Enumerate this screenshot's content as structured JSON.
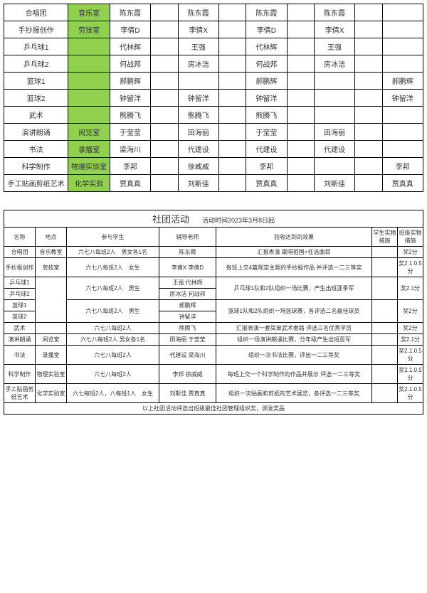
{
  "topTable": {
    "rows": [
      {
        "name": "合唱团",
        "room": "音乐室",
        "roomGreen": true,
        "c3": "陈东霞",
        "c4": "",
        "c5": "陈东霞",
        "c6": "",
        "c7": "陈东霞",
        "c8": "",
        "c9": "陈东霞",
        "c10": "",
        "c11": ""
      },
      {
        "name": "手抄报创作",
        "room": "劳技室",
        "roomGreen": true,
        "c3": "李倩D",
        "c4": "",
        "c5": "李倩X",
        "c6": "",
        "c7": "李倩D",
        "c8": "",
        "c9": "李倩X",
        "c10": "",
        "c11": ""
      },
      {
        "name": "乒乓球1",
        "room": "",
        "roomGreen": true,
        "c3": "代林辉",
        "c4": "",
        "c5": "王强",
        "c6": "",
        "c7": "代林辉",
        "c8": "",
        "c9": "王强",
        "c10": "",
        "c11": ""
      },
      {
        "name": "乒乓球2",
        "room": "",
        "roomGreen": true,
        "c3": "何战邦",
        "c4": "",
        "c5": "房冰洁",
        "c6": "",
        "c7": "何战邦",
        "c8": "",
        "c9": "房冰洁",
        "c10": "",
        "c11": ""
      },
      {
        "name": "篮球1",
        "room": "",
        "roomGreen": true,
        "c3": "郝鹏辉",
        "c4": "",
        "c5": "",
        "c6": "",
        "c7": "郝鹏辉",
        "c8": "",
        "c9": "",
        "c10": "",
        "c11": "郝鹏辉"
      },
      {
        "name": "篮球2",
        "room": "",
        "roomGreen": true,
        "c3": "钟留洋",
        "c4": "",
        "c5": "钟留洋",
        "c6": "",
        "c7": "钟留洋",
        "c8": "",
        "c9": "",
        "c10": "",
        "c11": "钟留洋"
      },
      {
        "name": "武术",
        "room": "",
        "roomGreen": true,
        "c3": "熊腾飞",
        "c4": "",
        "c5": "熊腾飞",
        "c6": "",
        "c7": "熊腾飞",
        "c8": "",
        "c9": "",
        "c10": "",
        "c11": ""
      },
      {
        "name": "演讲朗诵",
        "room": "阅览室",
        "roomGreen": true,
        "c3": "于莹莹",
        "c4": "",
        "c5": "田海丽",
        "c6": "",
        "c7": "于莹莹",
        "c8": "",
        "c9": "田海丽",
        "c10": "",
        "c11": ""
      },
      {
        "name": "书法",
        "room": "录播室",
        "roomGreen": true,
        "c3": "梁海川",
        "c4": "",
        "c5": "代建设",
        "c6": "",
        "c7": "代建设",
        "c8": "",
        "c9": "代建设",
        "c10": "",
        "c11": ""
      },
      {
        "name": "科学制作",
        "room": "物理实验室",
        "roomGreen": true,
        "c3": "李邦",
        "c4": "",
        "c5": "徐威威",
        "c6": "",
        "c7": "李邦",
        "c8": "",
        "c9": "",
        "c10": "",
        "c11": "李邦"
      },
      {
        "name": "手工贴画剪纸艺术",
        "room": "化学实验",
        "roomGreen": true,
        "c3": "贾真真",
        "c4": "",
        "c5": "刘斯佳",
        "c6": "",
        "c7": "贾真真",
        "c8": "",
        "c9": "刘斯佳",
        "c10": "",
        "c11": "贾真真"
      }
    ]
  },
  "bottomTable": {
    "title": "社团活动",
    "subtitle": "活动时间2023年3月8日起",
    "headers": {
      "name": "名称",
      "place": "地点",
      "students": "参与学生",
      "teachers": "辅导老师",
      "effect": "验收达到的效果",
      "studentMeasure": "学生实物措施",
      "classMeasure": "班级实物措施"
    },
    "rows": [
      {
        "name": "合唱团",
        "place": "音乐教室",
        "students": "六七八每班2人　男女各1名",
        "teachers": "陈东霞",
        "effect": "汇报表演 歌唱祖国+任选曲目",
        "sm": "",
        "cm": "奖2分"
      },
      {
        "name": "手抄报创作",
        "place": "劳技室",
        "students": "六七八每班2人　女生",
        "teachers": "李倩X 李倩D",
        "effect": "每班上交4篇规定主题的手抄报作品 并评选一二三等奖",
        "sm": "",
        "cm": "奖2.1.0.5分"
      }
    ],
    "pingpong": {
      "name1": "乒乓球1",
      "name2": "乒乓球2",
      "students": "六七八每班2人　男生",
      "t1": "王强 代林辉",
      "t2": "房冰洁 何战邦",
      "effect": "乒乓球1队和2队组织一场比赛，产生出班亚季军",
      "cm": "奖2.1分"
    },
    "basketball": {
      "name1": "篮球1",
      "name2": "篮球2",
      "students": "六七八每班2人　男生",
      "t1": "郝鹏辉",
      "t2": "钟留洋",
      "effect": "篮球1队和2队组织一场篮球赛，各评选二名最佳球员",
      "cm": "奖2分"
    },
    "moreRows": [
      {
        "name": "武术",
        "place": "",
        "students": "六七八每班2人",
        "teachers": "熊腾飞",
        "effect": "汇报表演一套简单武术套路 评选三名优秀学员",
        "sm": "",
        "cm": "奖2分"
      },
      {
        "name": "演讲朗诵",
        "place": "阅览室",
        "students": "六七八每班2人 男女各1名",
        "teachers": "田海丽 于莹莹",
        "effect": "组织一场演讲朗诵比赛，分年级产生出班亚军",
        "sm": "",
        "cm": "奖2.1分"
      },
      {
        "name": "书法",
        "place": "录播室",
        "students": "六七八每班2人",
        "teachers": "代建设 梁海川",
        "effect": "组织一次书法比赛，评出一二三等奖",
        "sm": "",
        "cm": "奖2.1.0.5分"
      },
      {
        "name": "科学制作",
        "place": "物理实验室",
        "students": "六七八每班2人",
        "teachers": "李邦 徐威威",
        "effect": "每班上交一个科学制作的作品并展示 评选一二三等奖",
        "sm": "",
        "cm": "奖2.1.0.5分"
      },
      {
        "name": "手工贴画剪纸艺术",
        "place": "化学实验室",
        "students": "六七每班2人，八每班1人　女生",
        "teachers": "刘斯佳 贾真真",
        "effect": "组织一次贴画和剪纸的艺术展览，各评选一二三等奖",
        "sm": "",
        "cm": "奖2.1.0.5分"
      }
    ],
    "footer": "以上社团活动评选出班级最佳社团管理组织奖，颁发奖品"
  },
  "colors": {
    "green": "#92d050",
    "border": "#000000",
    "bg": "#ffffff"
  }
}
